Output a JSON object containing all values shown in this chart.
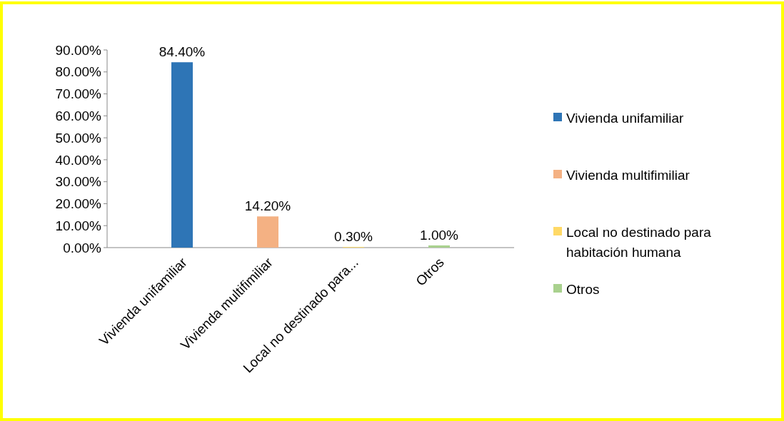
{
  "chart_data": {
    "type": "bar",
    "categories": [
      "Vivienda unifamiliar",
      "Vivienda multifimiliar",
      "Local no destinado para...",
      "Otros"
    ],
    "series": [
      {
        "name": "Vivienda unifamiliar",
        "color": "#2e75b6",
        "values": [
          84.4,
          null,
          null,
          null
        ],
        "value_labels": [
          "84.40%",
          null,
          null,
          null
        ]
      },
      {
        "name": "Vivienda multifimiliar",
        "color": "#f4b183",
        "values": [
          null,
          14.2,
          null,
          null
        ],
        "value_labels": [
          null,
          "14.20%",
          null,
          null
        ]
      },
      {
        "name": "Local no destinado para habitación humana",
        "color": "#ffd966",
        "values": [
          null,
          null,
          0.3,
          null
        ],
        "value_labels": [
          null,
          null,
          "0.30%",
          null
        ]
      },
      {
        "name": "Otros",
        "color": "#a9d18e",
        "values": [
          null,
          null,
          null,
          1.0
        ],
        "value_labels": [
          null,
          null,
          null,
          "1.00%"
        ]
      }
    ],
    "ylim": [
      0,
      90
    ],
    "yticks": [
      {
        "value": 0,
        "label": "0.00%"
      },
      {
        "value": 10,
        "label": "10.00%"
      },
      {
        "value": 20,
        "label": "20.00%"
      },
      {
        "value": 30,
        "label": "30.00%"
      },
      {
        "value": 40,
        "label": "40.00%"
      },
      {
        "value": 50,
        "label": "50.00%"
      },
      {
        "value": 60,
        "label": "60.00%"
      },
      {
        "value": 70,
        "label": "70.00%"
      },
      {
        "value": 80,
        "label": "80.00%"
      },
      {
        "value": 90,
        "label": "90.00%"
      }
    ],
    "legend": "right"
  }
}
